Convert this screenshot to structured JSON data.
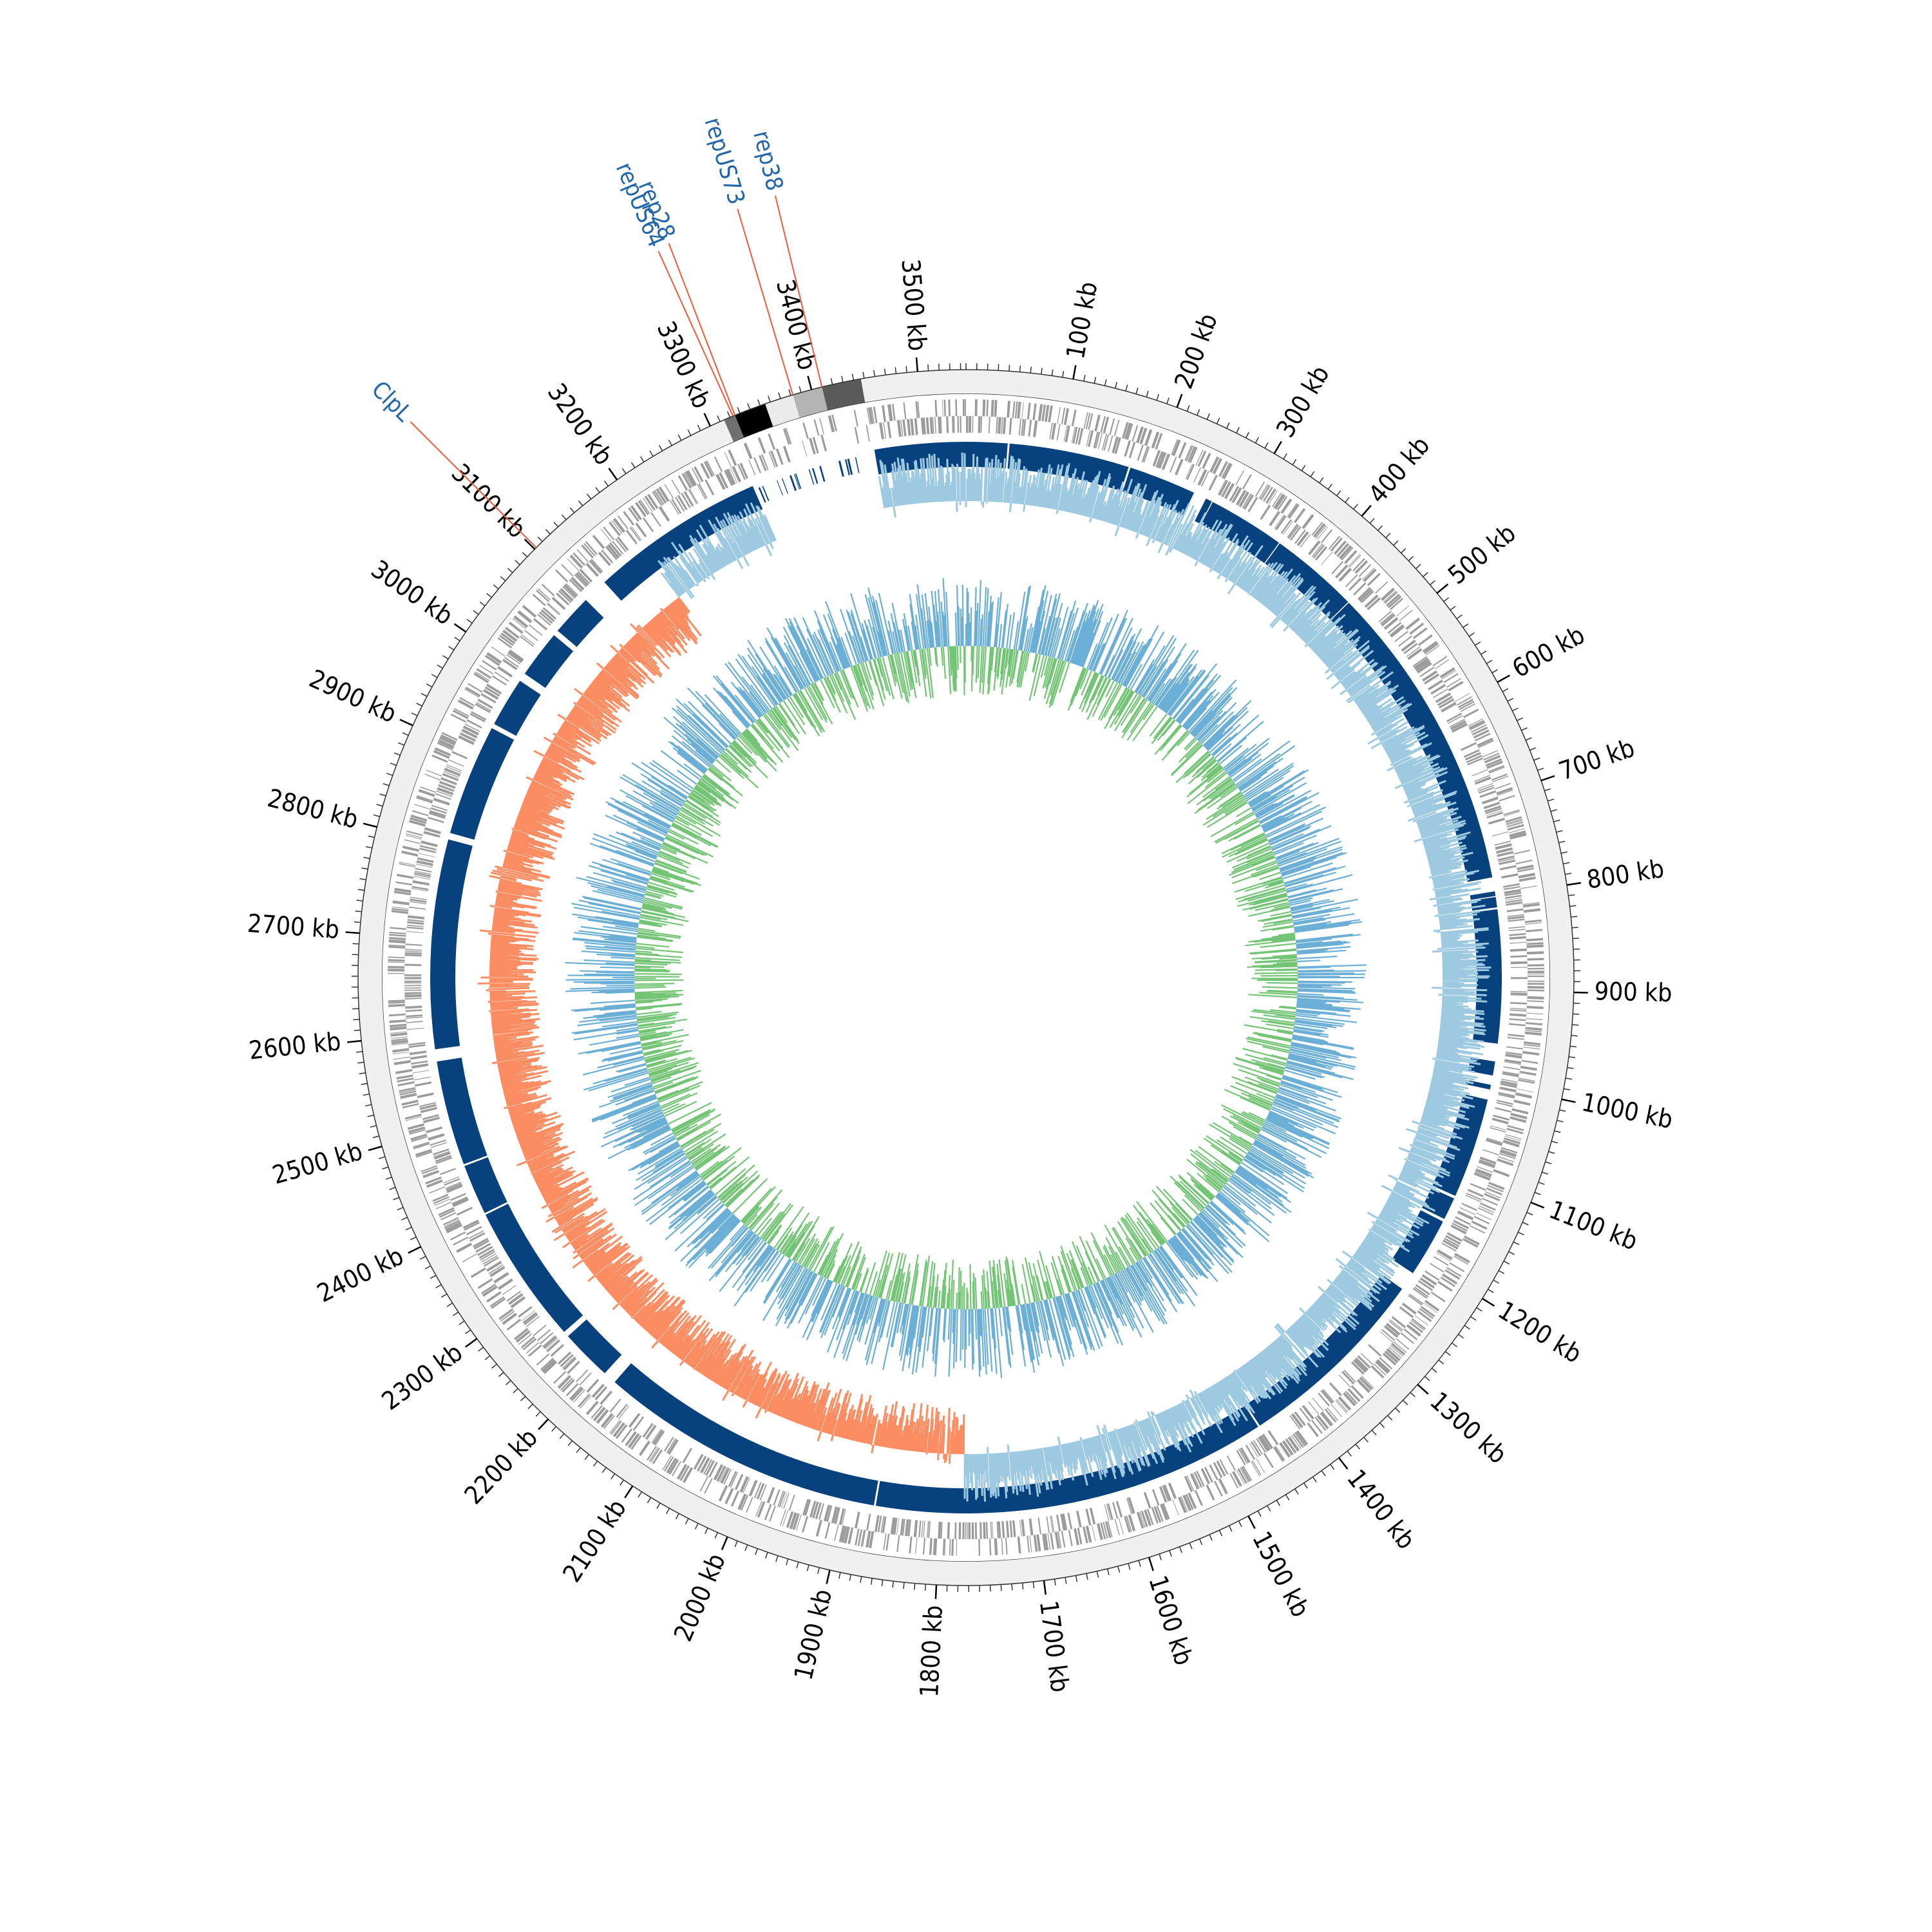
{
  "genome": {
    "length_kb": 3545,
    "unit": "kb",
    "major_tick_step_kb": 100,
    "minor_tick_step_kb": 10
  },
  "ticks": [
    {
      "pos": 100,
      "label": "100 kb"
    },
    {
      "pos": 200,
      "label": "200 kb"
    },
    {
      "pos": 300,
      "label": "300 kb"
    },
    {
      "pos": 400,
      "label": "400 kb"
    },
    {
      "pos": 500,
      "label": "500 kb"
    },
    {
      "pos": 600,
      "label": "600 kb"
    },
    {
      "pos": 700,
      "label": "700 kb"
    },
    {
      "pos": 800,
      "label": "800 kb"
    },
    {
      "pos": 900,
      "label": "900 kb"
    },
    {
      "pos": 1000,
      "label": "1000 kb"
    },
    {
      "pos": 1100,
      "label": "1100 kb"
    },
    {
      "pos": 1200,
      "label": "1200 kb"
    },
    {
      "pos": 1300,
      "label": "1300 kb"
    },
    {
      "pos": 1400,
      "label": "1400 kb"
    },
    {
      "pos": 1500,
      "label": "1500 kb"
    },
    {
      "pos": 1600,
      "label": "1600 kb"
    },
    {
      "pos": 1700,
      "label": "1700 kb"
    },
    {
      "pos": 1800,
      "label": "1800 kb"
    },
    {
      "pos": 1900,
      "label": "1900 kb"
    },
    {
      "pos": 2000,
      "label": "2000 kb"
    },
    {
      "pos": 2100,
      "label": "2100 kb"
    },
    {
      "pos": 2200,
      "label": "2200 kb"
    },
    {
      "pos": 2300,
      "label": "2300 kb"
    },
    {
      "pos": 2400,
      "label": "2400 kb"
    },
    {
      "pos": 2500,
      "label": "2500 kb"
    },
    {
      "pos": 2600,
      "label": "2600 kb"
    },
    {
      "pos": 2700,
      "label": "2700 kb"
    },
    {
      "pos": 2800,
      "label": "2800 kb"
    },
    {
      "pos": 2900,
      "label": "2900 kb"
    },
    {
      "pos": 3000,
      "label": "3000 kb"
    },
    {
      "pos": 3100,
      "label": "3100 kb"
    },
    {
      "pos": 3200,
      "label": "3200 kb"
    },
    {
      "pos": 3300,
      "label": "3300 kb"
    },
    {
      "pos": 3400,
      "label": "3400 kb"
    },
    {
      "pos": 3500,
      "label": "3500 kb"
    }
  ],
  "contig_blocks": [
    {
      "start": 3314,
      "end": 3325,
      "color": "#707070"
    },
    {
      "start": 3325,
      "end": 3355,
      "color": "#000000"
    },
    {
      "start": 3355,
      "end": 3382,
      "color": "#ebebeb"
    },
    {
      "start": 3382,
      "end": 3410,
      "color": "#b4b4b4"
    },
    {
      "start": 3410,
      "end": 3447,
      "color": "#5a5a5a"
    },
    {
      "start": 3447,
      "end": 3545,
      "color": "#f0f0f0"
    },
    {
      "start": 0,
      "end": 3314,
      "color": "#f0f0f0"
    }
  ],
  "gene_labels": [
    {
      "text": "ClpL",
      "pos": 3102,
      "color": "#2166ac",
      "line_color": "#ef5a3a"
    },
    {
      "text": "repUS64",
      "pos": 3323,
      "color": "#2166ac",
      "line_color": "#ef5a3a"
    },
    {
      "text": "rep28",
      "pos": 3325,
      "color": "#2166ac",
      "line_color": "#ef5a3a"
    },
    {
      "text": "repUS73",
      "pos": 3382,
      "color": "#2166ac",
      "line_color": "#ef5a3a"
    },
    {
      "text": "rep38",
      "pos": 3410,
      "color": "#2166ac",
      "line_color": "#ef5a3a"
    }
  ],
  "blast_gaps_kb": [
    [
      3314,
      3447
    ],
    [
      3447,
      3448
    ],
    [
      44,
      46
    ],
    [
      174,
      176
    ],
    [
      248,
      262
    ],
    [
      269,
      270
    ],
    [
      352,
      353
    ],
    [
      448,
      449
    ],
    [
      780,
      795
    ],
    [
      800,
      801
    ],
    [
      812,
      814
    ],
    [
      956,
      975
    ],
    [
      990,
      1000
    ],
    [
      1005,
      1016
    ],
    [
      1123,
      1126
    ],
    [
      1150,
      1153
    ],
    [
      1216,
      1236
    ],
    [
      1445,
      1447
    ],
    [
      1868,
      1870
    ],
    [
      2176,
      2190
    ],
    [
      2245,
      2251
    ],
    [
      2400,
      2402
    ],
    [
      2456,
      2458
    ],
    [
      2570,
      2583
    ],
    [
      2806,
      2813
    ],
    [
      2932,
      2937
    ],
    [
      2990,
      2999
    ],
    [
      3050,
      3056
    ],
    [
      3100,
      3127
    ]
  ],
  "colors": {
    "gene_track": "#9b9b9b",
    "blast_track": "#08427e",
    "gc_skew_positive": "#9ecae1",
    "gc_skew_negative": "#fc8d62",
    "gc_content_blue": "#6baed6",
    "gc_content_green": "#74c476",
    "backbone_ring": "#f0f0f0",
    "scale_line": "#333333"
  },
  "gc_skew": {
    "switch_kb_1": 1775,
    "switch_kb_2": 3180
  }
}
